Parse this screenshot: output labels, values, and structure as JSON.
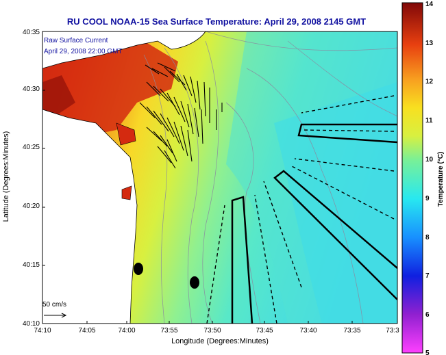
{
  "title": "RU COOL  NOAA-15  Sea Surface Temperature:  April 29, 2008 2145 GMT",
  "legend": {
    "line1": "Raw Surface Current",
    "line2": "April 29, 2008 22:00 GMT"
  },
  "scale_label": "50 cm/s",
  "axes": {
    "xlabel": "Longitude (Degrees:Minutes)",
    "ylabel": "Latitude (Degrees:Minutes)",
    "x_ticks": [
      "74:10",
      "74:05",
      "74:00",
      "73:55",
      "73:50",
      "73:45",
      "73:40",
      "73:35",
      "73:3"
    ],
    "y_ticks": [
      "40:35",
      "40:30",
      "40:25",
      "40:20",
      "40:15",
      "40:10"
    ]
  },
  "colorbar": {
    "label": "Temperature (°C)",
    "min": 5,
    "max": 14,
    "ticks": [
      "14",
      "13",
      "12",
      "11",
      "10",
      "9",
      "8",
      "7",
      "6",
      "5"
    ]
  },
  "colors": {
    "title": "#1010a0",
    "legend": "#1010a0",
    "land": "#ffffff",
    "warm_coast": "#d42a10",
    "cold_offshore": "#40d8e8"
  }
}
